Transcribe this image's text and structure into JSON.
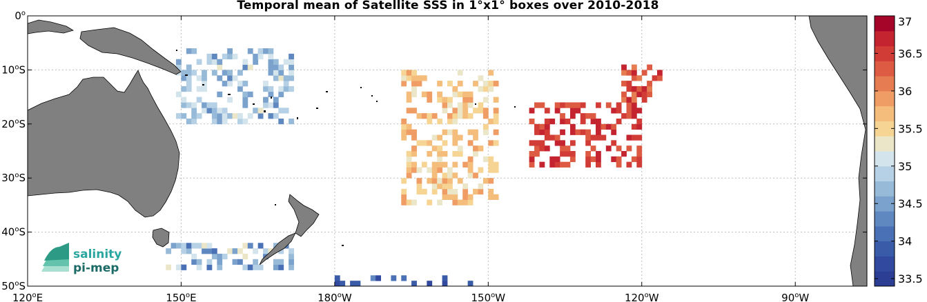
{
  "title": "Temporal mean of Satellite SSS in 1°x1° boxes over 2010-2018",
  "map": {
    "lon_range": [
      120,
      284
    ],
    "lat_range": [
      -50,
      0
    ],
    "grid": "dotted",
    "land_color": "#808080",
    "x_ticks": [
      {
        "lon": 120,
        "num": "120",
        "suffix": "E"
      },
      {
        "lon": 150,
        "num": "150",
        "suffix": "E"
      },
      {
        "lon": 180,
        "num": "180",
        "suffix": "W"
      },
      {
        "lon": 210,
        "num": "150",
        "suffix": "W"
      },
      {
        "lon": 240,
        "num": "120",
        "suffix": "W"
      },
      {
        "lon": 270,
        "num": "90",
        "suffix": "W"
      }
    ],
    "y_ticks": [
      {
        "lat": 0,
        "num": "0",
        "suffix": ""
      },
      {
        "lat": -10,
        "num": "10",
        "suffix": "S"
      },
      {
        "lat": -20,
        "num": "20",
        "suffix": "S"
      },
      {
        "lat": -30,
        "num": "30",
        "suffix": "S"
      },
      {
        "lat": -40,
        "num": "40",
        "suffix": "S"
      },
      {
        "lat": -50,
        "num": "50",
        "suffix": "S"
      }
    ]
  },
  "colorbar": {
    "min": 33.4,
    "max": 37.0,
    "tick_labels": [
      "37",
      "36.5",
      "36",
      "35.5",
      "35",
      "34.5",
      "34",
      "33.5"
    ],
    "tick_values": [
      37,
      36.5,
      36,
      35.5,
      35,
      34.5,
      34,
      33.5
    ],
    "colors": [
      "#2c3d94",
      "#31499e",
      "#3a5ba8",
      "#4a70b5",
      "#5f88c0",
      "#7aa2cc",
      "#97bad9",
      "#b6d1e5",
      "#d3e4ec",
      "#ece6c9",
      "#f6d494",
      "#f4bd7b",
      "#ef9d64",
      "#e67d52",
      "#dc5b42",
      "#d23c36",
      "#c3242f",
      "#a6052a"
    ]
  },
  "logo": {
    "line1": "salinity",
    "line2": "pi-mep"
  },
  "chart_data": {
    "type": "heatmap",
    "title": "Temporal mean of Satellite SSS in 1°x1° boxes over 2010-2018",
    "variable_unit_range": [
      33.4,
      37.0
    ],
    "cell_size_deg": 1,
    "regions": [
      {
        "lon": [
          149,
          172
        ],
        "lat": [
          -20,
          -6
        ],
        "typical_sss": 34.8,
        "spread": 0.45
      },
      {
        "lon": [
          193,
          212
        ],
        "lat": [
          -35,
          -10
        ],
        "typical_sss": 35.6,
        "spread": 0.35
      },
      {
        "lon": [
          218,
          240
        ],
        "lat": [
          -28,
          -16
        ],
        "typical_sss": 36.5,
        "spread": 0.25
      },
      {
        "lon": [
          236,
          244
        ],
        "lat": [
          -16,
          -9
        ],
        "typical_sss": 36.4,
        "spread": 0.3
      },
      {
        "lon": [
          147,
          172
        ],
        "lat": [
          -47,
          -42
        ],
        "typical_sss": 34.7,
        "spread": 0.6
      },
      {
        "lon": [
          180,
          207
        ],
        "lat": [
          -50,
          -48
        ],
        "typical_sss": 34.0,
        "spread": 0.4
      }
    ]
  }
}
